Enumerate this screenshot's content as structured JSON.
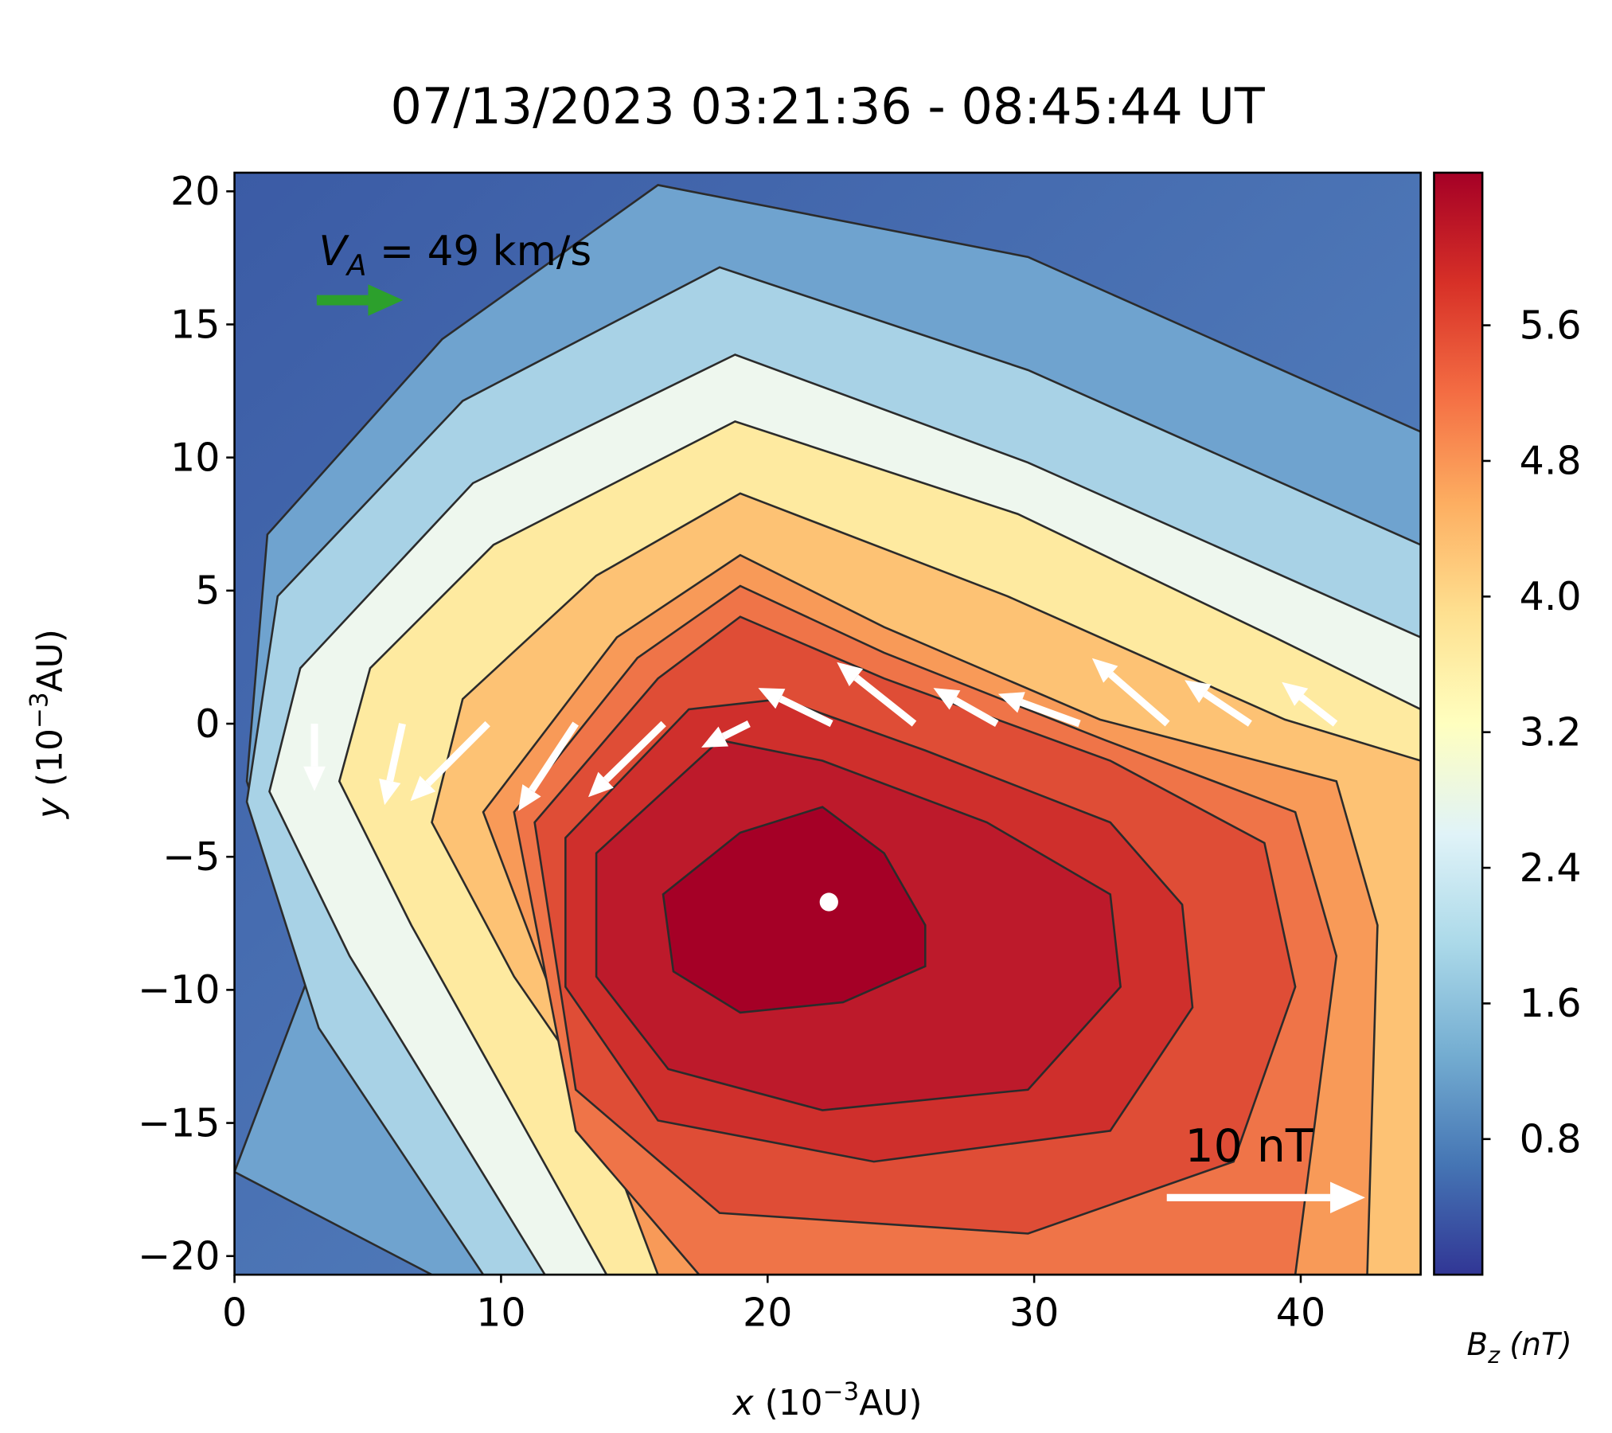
{
  "chart_data": {
    "type": "contour",
    "title": "07/13/2023 03:21:36 - 08:45:44 UT",
    "x_label": {
      "symbol": "x",
      "text": " (10",
      "exponent": "−3",
      "unit": "AU)"
    },
    "y_label": {
      "symbol": "y",
      "text": " (10",
      "exponent": "−3",
      "unit": "AU)"
    },
    "xlim": [
      0,
      44.5
    ],
    "ylim": [
      -20.7,
      20.7
    ],
    "xticks": [
      0,
      10,
      20,
      30,
      40
    ],
    "yticks": [
      {
        "value": -20,
        "label": "−20"
      },
      {
        "value": -15,
        "label": "−15"
      },
      {
        "value": -10,
        "label": "−10"
      },
      {
        "value": -5,
        "label": "−5"
      },
      0,
      5,
      10,
      15,
      20
    ],
    "colorbar": {
      "colormap": "RdYlBu_r",
      "label": {
        "symbol": "B",
        "subscript": "z",
        "unit": " (nT)"
      },
      "lim": [
        0,
        6.5
      ],
      "ticks": [
        0.8,
        1.6,
        2.4,
        3.2,
        {
          "value": 4,
          "label": "4.0"
        },
        4.8,
        5.6
      ]
    },
    "center": {
      "x": 22.3,
      "y": -6.7,
      "color": "#ffffff"
    },
    "vectors": {
      "color": "#ffffff",
      "x": [
        41.3,
        38.1,
        35.0,
        31.7,
        28.6,
        25.5,
        22.4,
        19.3,
        16.1,
        12.8,
        9.5,
        6.3,
        3.0
      ],
      "y": [
        0,
        0,
        0,
        0,
        0,
        0,
        0,
        0,
        0,
        0,
        0,
        0,
        0
      ],
      "u": [
        -2.7,
        -3.3,
        -3.8,
        -4.1,
        -3.2,
        -3.9,
        -3.7,
        -2.4,
        -3.8,
        -2.9,
        -3.9,
        -0.9,
        0
      ],
      "v": [
        2.1,
        2.2,
        3.3,
        1.5,
        1.8,
        3.1,
        1.8,
        -1.2,
        -3.7,
        -4.4,
        -3.9,
        -4.1,
        -3.4
      ]
    },
    "reference_vector": {
      "label": "10 nT",
      "value": 10,
      "color": "#ffffff"
    },
    "alfven_reference": {
      "symbol": "V",
      "subscript": "A",
      "text": " = 49 km/s",
      "value": 49,
      "color": "#2ca02c"
    }
  }
}
